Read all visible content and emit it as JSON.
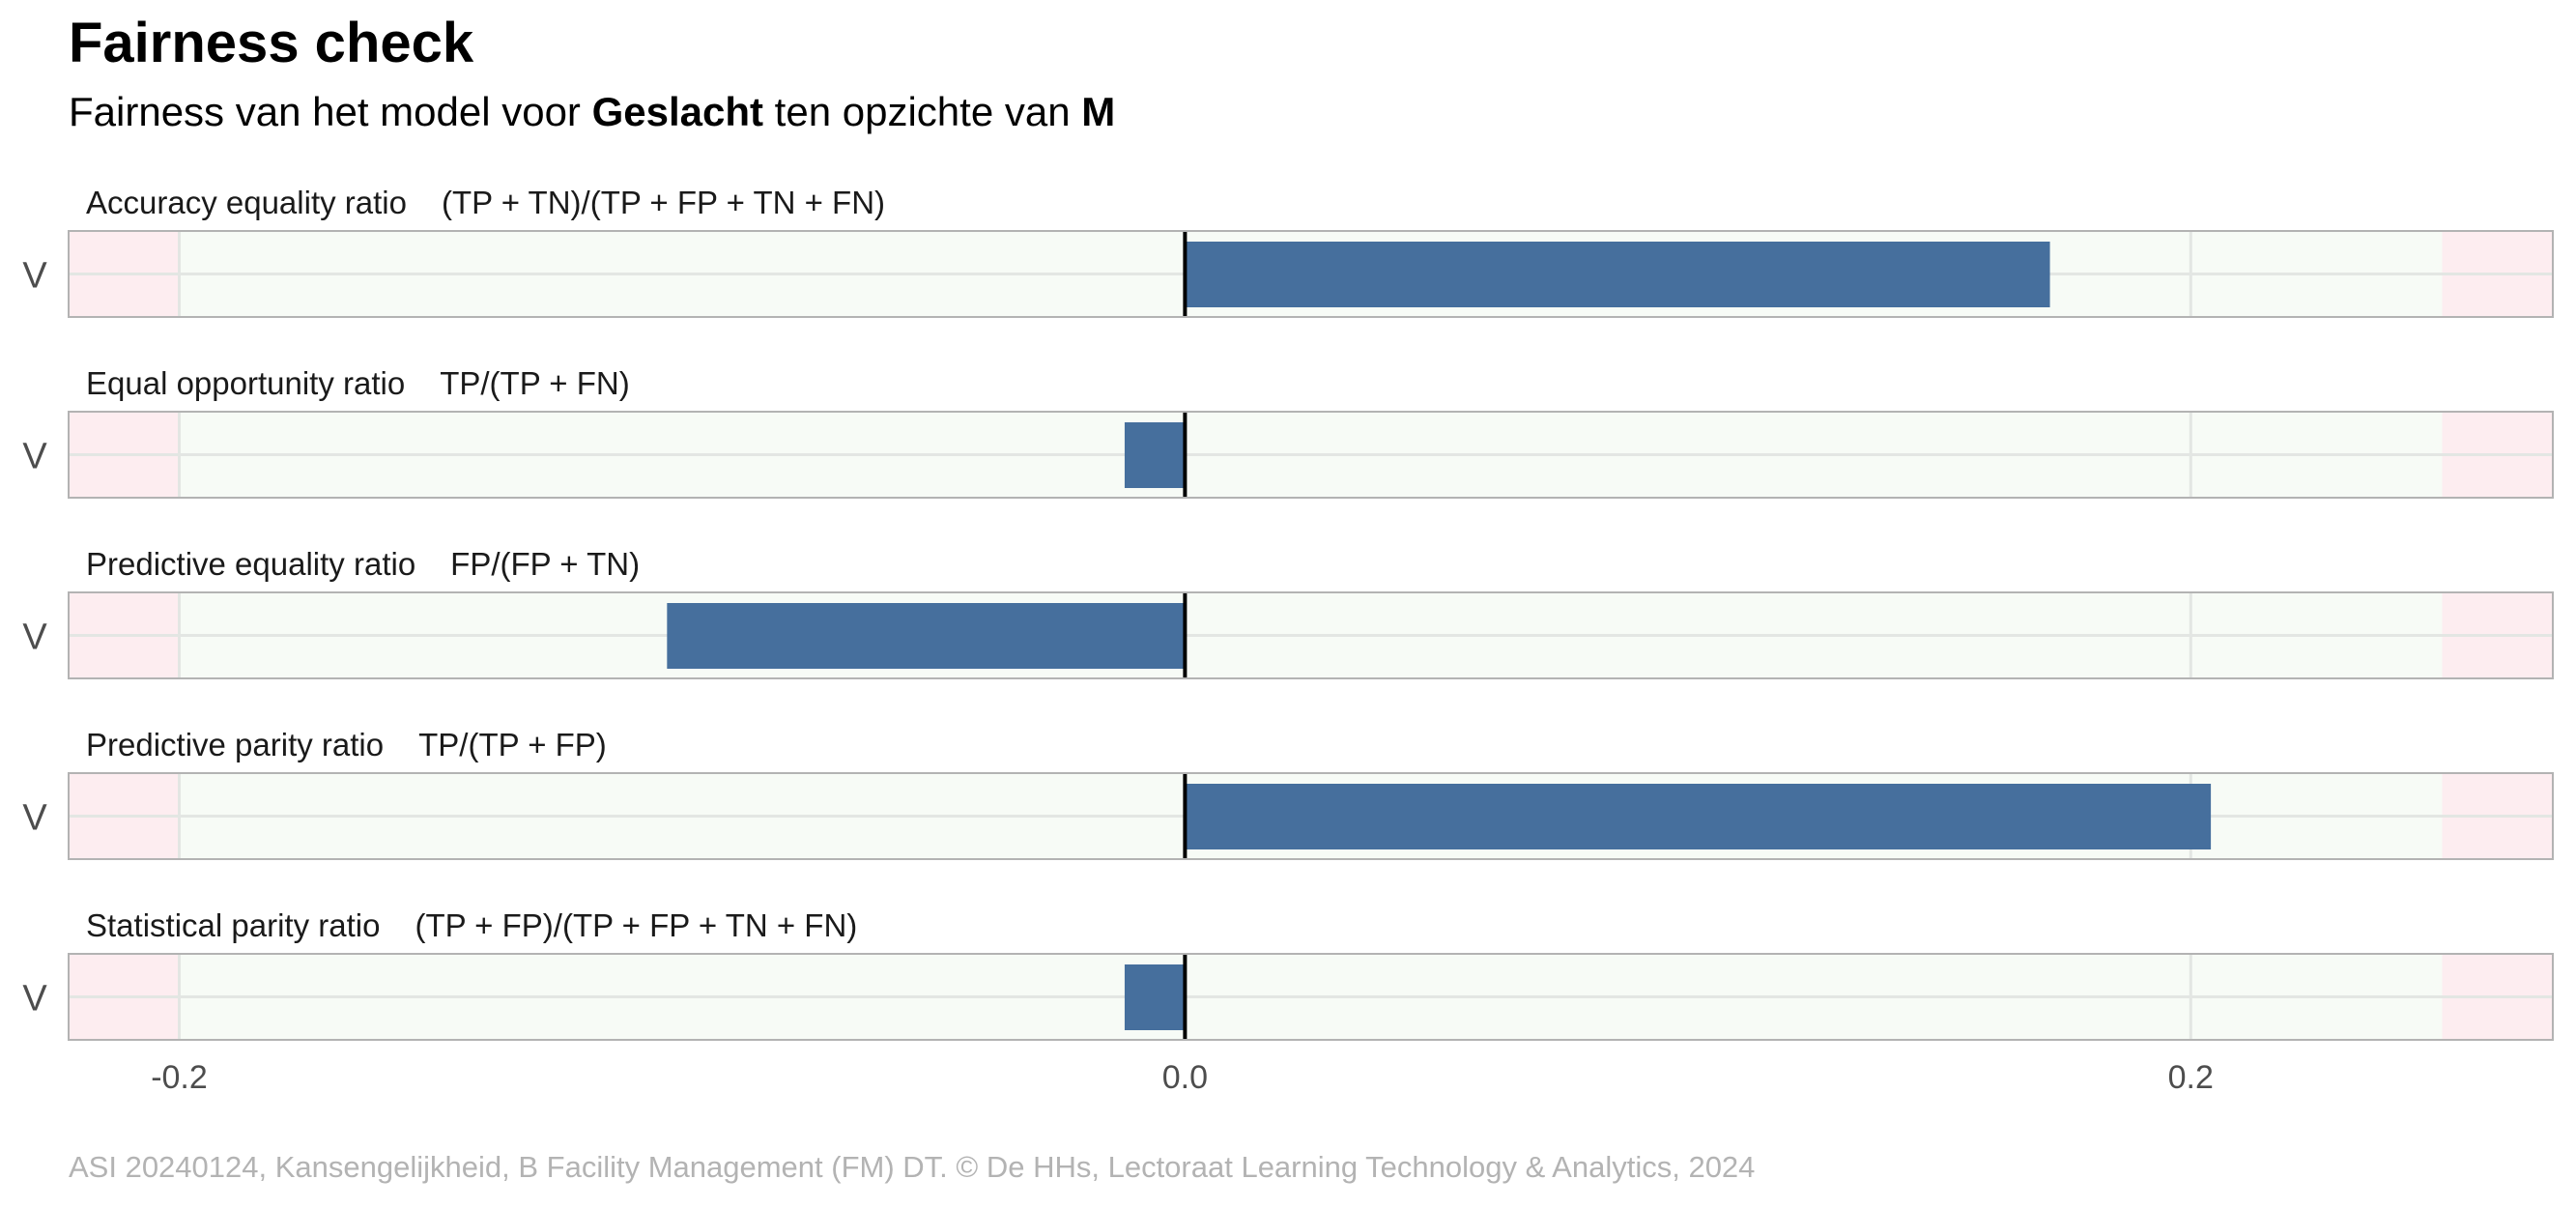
{
  "title": "Fairness check",
  "subtitle": {
    "prefix": "Fairness van het model voor ",
    "variable": "Geslacht",
    "middle": " ten opzichte van ",
    "reference": "M"
  },
  "caption": "ASI 20240124, Kansengelijkheid, B Facility Management (FM) DT. © De HHs, Lectoraat Learning Technology & Analytics, 2024",
  "colors": {
    "bar": "#466f9d",
    "fair_zone": "#f7fbf6",
    "unfair_zone": "#fdedf0",
    "zero_line": "#000000",
    "panel_border": "#b3b3b3",
    "grid": "#e3e6e3"
  },
  "chart_data": {
    "type": "bar",
    "orientation": "horizontal",
    "facet_layout": "stacked vertically, shared x axis",
    "x_ticks": [
      -0.2,
      0.0,
      0.2
    ],
    "x_tick_labels": [
      "-0.2",
      "0.0",
      "0.2"
    ],
    "xlim": [
      -0.222,
      0.272
    ],
    "fair_band": [
      -0.2,
      0.25
    ],
    "grid": true,
    "panels": [
      {
        "metric": "Accuracy equality ratio",
        "formula": "(TP + TN)/(TP + FP + TN + FN)",
        "category": "V",
        "value": 0.172
      },
      {
        "metric": "Equal opportunity ratio",
        "formula": "TP/(TP + FN)",
        "category": "V",
        "value": -0.012
      },
      {
        "metric": "Predictive equality ratio",
        "formula": "FP/(FP + TN)",
        "category": "V",
        "value": -0.103
      },
      {
        "metric": "Predictive parity ratio",
        "formula": "TP/(TP + FP)",
        "category": "V",
        "value": 0.204
      },
      {
        "metric": "Statistical parity ratio",
        "formula": "(TP + FP)/(TP + FP + TN + FN)",
        "category": "V",
        "value": -0.012
      }
    ]
  }
}
